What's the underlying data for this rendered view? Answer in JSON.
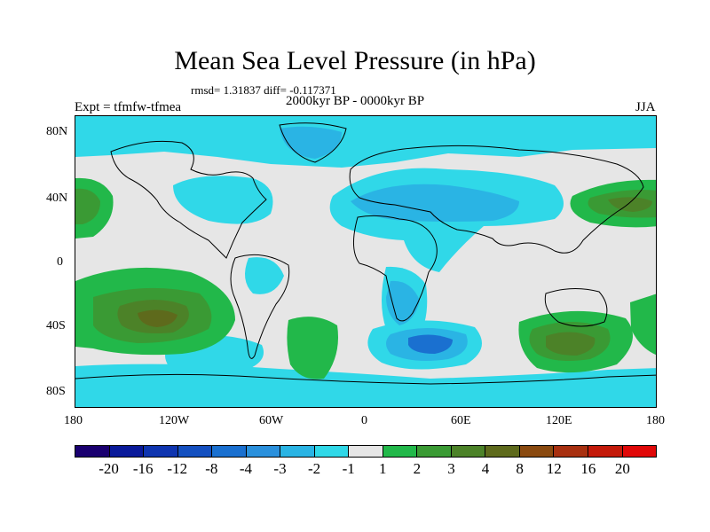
{
  "figure": {
    "title": "Mean Sea Level Pressure (in hPa)",
    "stats": "rmsd= 1.31837 diff= -0.117371",
    "expt": "Expt = tfmfw-tfmea",
    "period": "2000kyr BP - 0000kyr BP",
    "season": "JJA"
  },
  "axes": {
    "lat_labels": [
      "80N",
      "40N",
      "0",
      "40S",
      "80S"
    ],
    "lon_labels": [
      "180",
      "120W",
      "60W",
      "0",
      "60E",
      "120E",
      "180"
    ]
  },
  "colorbar": {
    "levels": [
      "-20",
      "-16",
      "-12",
      "-8",
      "-4",
      "-3",
      "-2",
      "-1",
      "1",
      "2",
      "3",
      "4",
      "8",
      "12",
      "16",
      "20"
    ],
    "colors": [
      "#1a0070",
      "#0a1a9a",
      "#0f35b0",
      "#1450c0",
      "#1a70d0",
      "#2a90dc",
      "#2ab4e4",
      "#30d8e8",
      "#e6e6e6",
      "#22b84a",
      "#3a9a34",
      "#4c8228",
      "#5e6a1c",
      "#8a4a10",
      "#a83010",
      "#c41a0a",
      "#e00808"
    ]
  },
  "map_colors": {
    "land_line": "#000000",
    "neutral": "#e6e6e6"
  }
}
